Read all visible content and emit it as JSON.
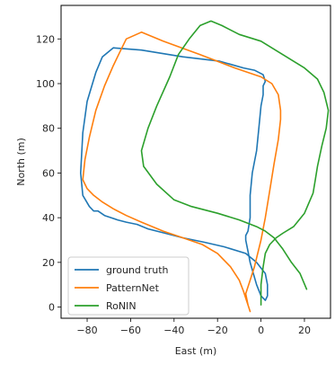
{
  "chart_data": {
    "type": "line",
    "xlabel": "East (m)",
    "ylabel": "North (m)",
    "xlim": [
      -92,
      32
    ],
    "ylim": [
      -5,
      135
    ],
    "xticks": [
      -80,
      -60,
      -40,
      -20,
      0,
      20
    ],
    "yticks": [
      0,
      20,
      40,
      60,
      80,
      100,
      120
    ],
    "xtick_labels": [
      "−80",
      "−60",
      "−40",
      "−20",
      "0",
      "20"
    ],
    "ytick_labels": [
      "0",
      "20",
      "40",
      "60",
      "80",
      "100",
      "120"
    ],
    "grid": false,
    "legend_position": "lower-left",
    "series": [
      {
        "name": "ground truth",
        "color": "#1f77b4",
        "x": [
          2,
          1,
          -3,
          -8,
          -19,
          -36,
          -55,
          -68,
          -73,
          -76,
          -80,
          -82,
          -83,
          -82,
          -79,
          -77,
          -75,
          -72,
          -69,
          -66,
          -62,
          -57,
          -52,
          -44,
          -36,
          -26,
          -17,
          -7,
          -2,
          2,
          3,
          3,
          2,
          0,
          -2,
          -5,
          -6,
          -7,
          -7,
          -6,
          -5,
          -5,
          -4,
          -2,
          -1,
          0,
          1,
          1,
          2
        ],
        "y": [
          101,
          104,
          106,
          107,
          110,
          112,
          115,
          116,
          112,
          105,
          92,
          78,
          60,
          50,
          45,
          43,
          43,
          41,
          40,
          39,
          38,
          37,
          35,
          33,
          31,
          29,
          27,
          24,
          20,
          15,
          10,
          5,
          3,
          5,
          10,
          20,
          25,
          30,
          32,
          34,
          40,
          50,
          60,
          70,
          80,
          90,
          95,
          99,
          101
        ]
      },
      {
        "name": "PatternNet",
        "color": "#ff7f0e",
        "x": [
          9,
          8,
          5,
          0,
          -12,
          -28,
          -45,
          -55,
          -62,
          -65,
          -68,
          -72,
          -76,
          -79,
          -81,
          -82,
          -80,
          -77,
          -73,
          -68,
          -62,
          -55,
          -45,
          -36,
          -27,
          -20,
          -14,
          -10,
          -8,
          -7,
          -6,
          -5,
          -6,
          -7,
          -5,
          -3,
          -2,
          0,
          2,
          4,
          6,
          8,
          9,
          9
        ],
        "y": [
          88,
          95,
          100,
          103,
          107,
          113,
          119,
          123,
          120,
          114,
          108,
          99,
          88,
          76,
          66,
          57,
          53,
          50,
          47,
          44,
          41,
          38,
          34,
          31,
          28,
          24,
          18,
          12,
          7,
          4,
          1,
          -2,
          1,
          6,
          12,
          18,
          22,
          30,
          40,
          52,
          64,
          75,
          84,
          88
        ]
      },
      {
        "name": "RoNIN",
        "color": "#2ca02c",
        "x": [
          21,
          18,
          14,
          10,
          6,
          2,
          -2,
          -10,
          -20,
          -32,
          -40,
          -48,
          -54,
          -55,
          -52,
          -48,
          -42,
          -38,
          -33,
          -28,
          -23,
          -18,
          -10,
          0,
          10,
          20,
          26,
          29,
          31,
          30,
          28,
          26,
          25,
          24,
          20,
          15,
          10,
          7,
          4,
          2,
          1,
          0,
          0,
          0
        ],
        "y": [
          8,
          15,
          20,
          26,
          31,
          34,
          36,
          39,
          42,
          45,
          48,
          55,
          63,
          70,
          80,
          90,
          103,
          113,
          120,
          126,
          128,
          126,
          122,
          119,
          113,
          107,
          102,
          96,
          88,
          80,
          72,
          63,
          57,
          51,
          42,
          36,
          33,
          31,
          28,
          24,
          18,
          10,
          5,
          1
        ]
      }
    ]
  }
}
